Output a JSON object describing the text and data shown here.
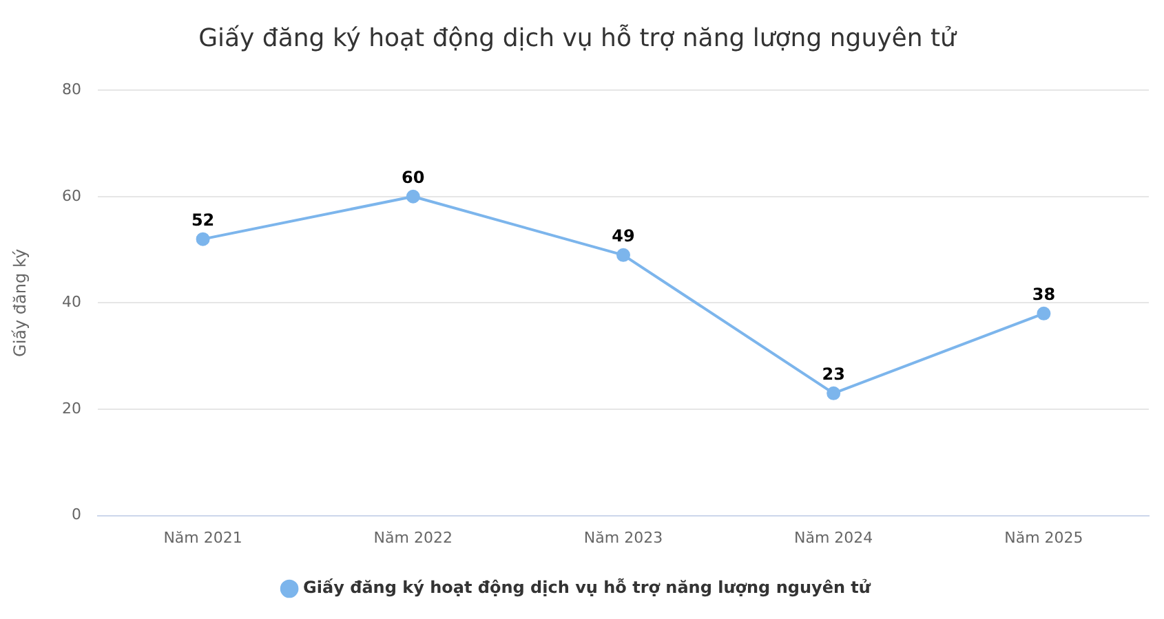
{
  "chart_data": {
    "type": "line",
    "title": "Giấy đăng ký hoạt động dịch vụ hỗ trợ năng lượng nguyên tử",
    "ylabel": "Giấy đăng ký",
    "categories": [
      "Năm 2021",
      "Năm 2022",
      "Năm 2023",
      "Năm 2024",
      "Năm 2025"
    ],
    "series": [
      {
        "name": "Giấy đăng ký hoạt động dịch vụ hỗ trợ năng lượng nguyên tử",
        "color": "#7cb5ec",
        "values": [
          52,
          60,
          49,
          23,
          38
        ]
      }
    ],
    "ylim": [
      0,
      80
    ],
    "yticks": [
      0,
      20,
      40,
      60,
      80
    ],
    "grid": "y",
    "legend": "bottom",
    "marker": "circle",
    "line_style": "solid",
    "data_labels": true
  }
}
